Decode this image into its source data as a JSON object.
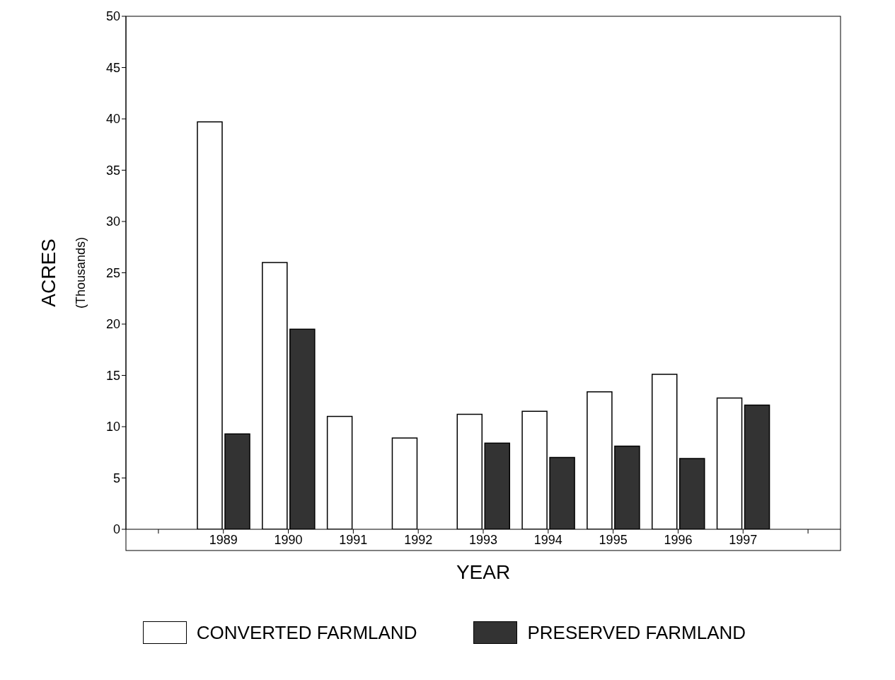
{
  "chart_data": {
    "type": "bar",
    "xlabel": "YEAR",
    "ylabel": "ACRES (Thousands)",
    "categories": [
      null,
      "1989",
      "1990",
      "1991",
      "1992",
      "1993",
      "1994",
      "1995",
      "1996",
      "1997",
      null
    ],
    "series": [
      {
        "name": "CONVERTED FARMLAND",
        "color": "#ffffff",
        "values": [
          null,
          39.7,
          26.0,
          11.0,
          8.9,
          11.2,
          11.5,
          13.4,
          15.1,
          12.8,
          null
        ]
      },
      {
        "name": "PRESERVED FARMLAND",
        "color": "#333333",
        "values": [
          null,
          9.3,
          19.5,
          0,
          0,
          8.4,
          7.0,
          8.1,
          6.9,
          12.1,
          null
        ]
      }
    ],
    "ylim": [
      0,
      50
    ],
    "yticks": [
      0,
      5,
      10,
      15,
      20,
      25,
      30,
      35,
      40,
      45,
      50
    ],
    "grid": false,
    "legend": "bottom"
  }
}
